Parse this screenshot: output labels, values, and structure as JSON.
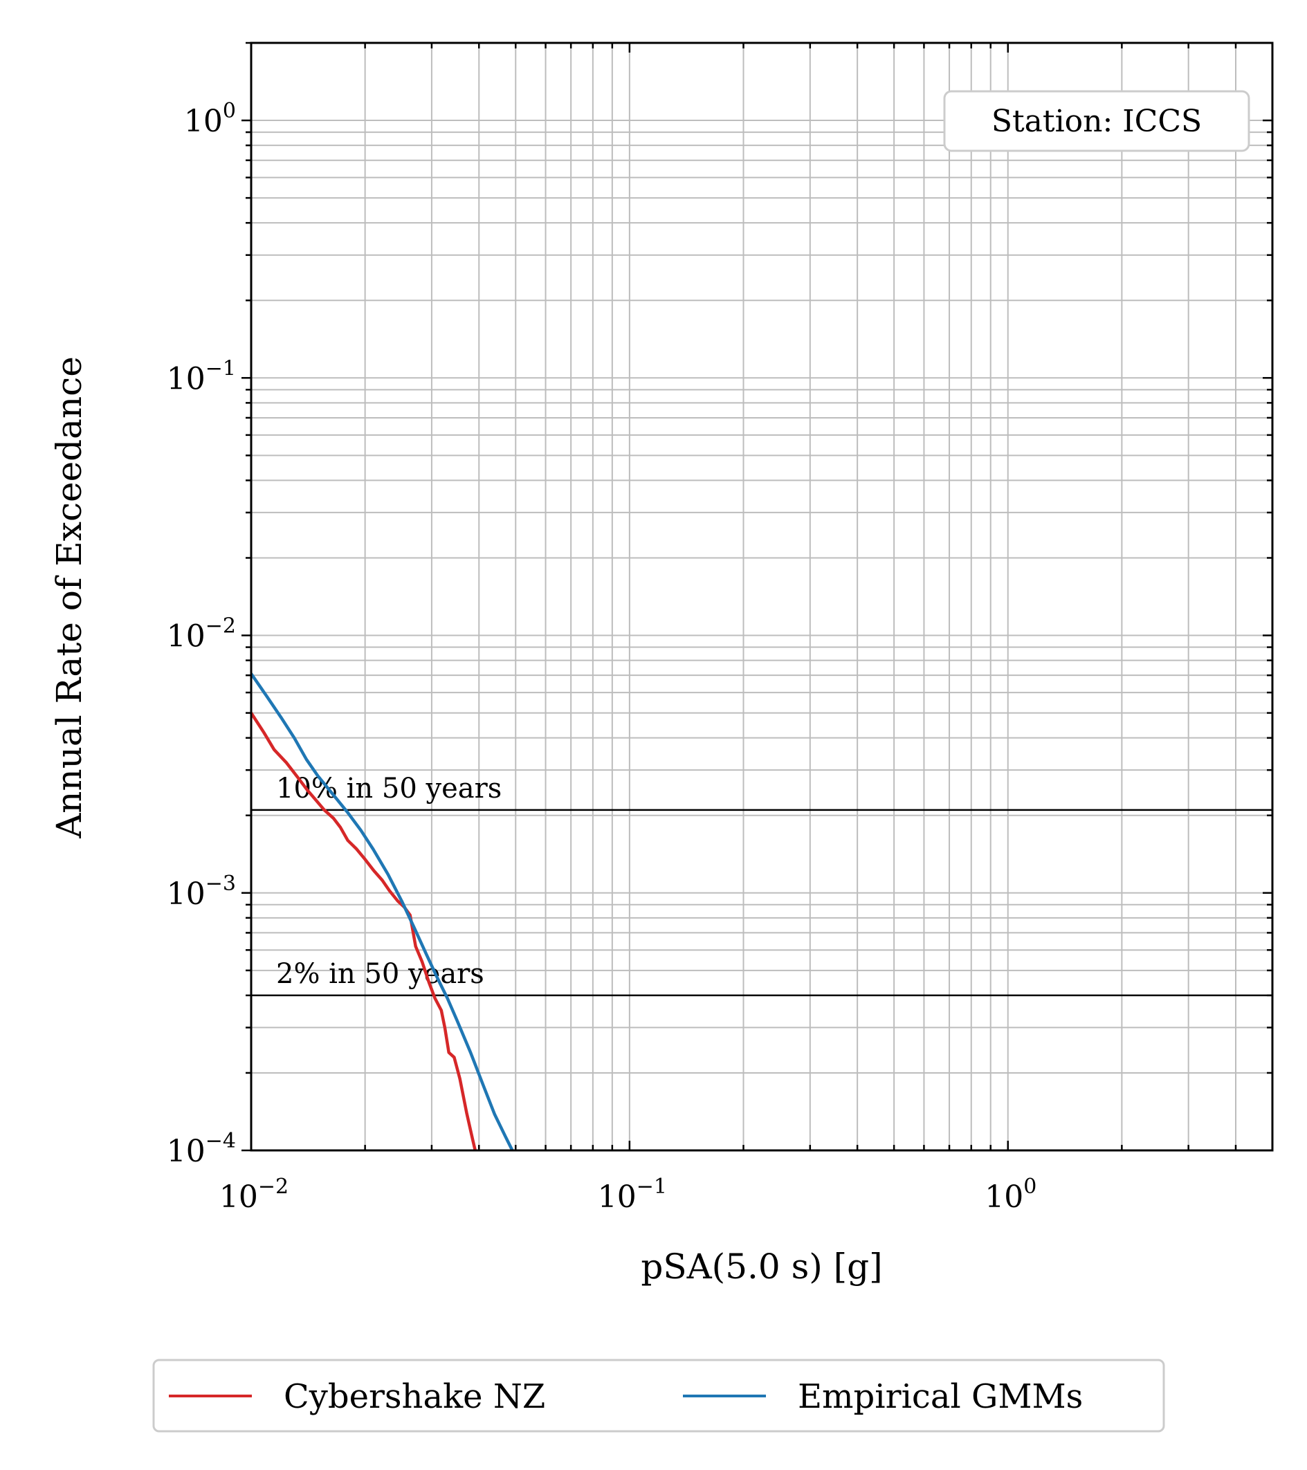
{
  "chart_data": {
    "type": "line",
    "xlabel": "pSA(5.0 s) [g]",
    "ylabel": "Annual Rate of Exceedance",
    "xscale": "log",
    "yscale": "log",
    "xlim": [
      0.01,
      5.0
    ],
    "ylim": [
      0.0001,
      2.0
    ],
    "grid": true,
    "x_ticks": [
      {
        "base": "10",
        "exp": "−2"
      },
      {
        "base": "10",
        "exp": "−1"
      },
      {
        "base": "10",
        "exp": "0"
      }
    ],
    "y_ticks": [
      {
        "base": "10",
        "exp": "0"
      },
      {
        "base": "10",
        "exp": "−1"
      },
      {
        "base": "10",
        "exp": "−2"
      },
      {
        "base": "10",
        "exp": "−3"
      },
      {
        "base": "10",
        "exp": "−4"
      }
    ],
    "annotation_box": "Station: ICCS",
    "reference_lines": [
      {
        "label": "10% in 50 years",
        "y": 0.0021
      },
      {
        "label": "2% in 50 years",
        "y": 0.0004
      }
    ],
    "legend_position": "bottom-center",
    "series": [
      {
        "name": "Cybershake NZ",
        "color": "#d62728",
        "points": [
          [
            0.01,
            0.005
          ],
          [
            0.0108,
            0.0042
          ],
          [
            0.0115,
            0.0036
          ],
          [
            0.0124,
            0.0032
          ],
          [
            0.0133,
            0.0028
          ],
          [
            0.0141,
            0.0025
          ],
          [
            0.0148,
            0.0023
          ],
          [
            0.0156,
            0.0021
          ],
          [
            0.0165,
            0.00195
          ],
          [
            0.0172,
            0.0018
          ],
          [
            0.018,
            0.0016
          ],
          [
            0.019,
            0.00148
          ],
          [
            0.02,
            0.00135
          ],
          [
            0.0211,
            0.00122
          ],
          [
            0.0222,
            0.00112
          ],
          [
            0.0232,
            0.00102
          ],
          [
            0.0244,
            0.00093
          ],
          [
            0.0254,
            0.00088
          ],
          [
            0.0263,
            0.00082
          ],
          [
            0.0272,
            0.00062
          ],
          [
            0.0283,
            0.00054
          ],
          [
            0.0295,
            0.00045
          ],
          [
            0.0306,
            0.00039
          ],
          [
            0.0318,
            0.00035
          ],
          [
            0.0325,
            0.0003
          ],
          [
            0.0333,
            0.00024
          ],
          [
            0.0344,
            0.00023
          ],
          [
            0.0356,
            0.00019
          ],
          [
            0.0371,
            0.00014
          ],
          [
            0.0385,
            0.00011
          ],
          [
            0.0391,
            0.0001
          ]
        ]
      },
      {
        "name": "Empirical GMMs",
        "color": "#1f77b4",
        "points": [
          [
            0.01,
            0.0071
          ],
          [
            0.011,
            0.0058
          ],
          [
            0.012,
            0.0048
          ],
          [
            0.013,
            0.004
          ],
          [
            0.014,
            0.0033
          ],
          [
            0.015,
            0.00285
          ],
          [
            0.0165,
            0.0024
          ],
          [
            0.018,
            0.00205
          ],
          [
            0.0195,
            0.00175
          ],
          [
            0.021,
            0.00148
          ],
          [
            0.023,
            0.00118
          ],
          [
            0.025,
            0.00093
          ],
          [
            0.027,
            0.00073
          ],
          [
            0.029,
            0.00058
          ],
          [
            0.031,
            0.00047
          ],
          [
            0.033,
            0.00039
          ],
          [
            0.035,
            0.00032
          ],
          [
            0.038,
            0.00024
          ],
          [
            0.041,
            0.00018
          ],
          [
            0.044,
            0.000138
          ],
          [
            0.047,
            0.000113
          ],
          [
            0.049,
            0.0001
          ]
        ]
      }
    ]
  }
}
